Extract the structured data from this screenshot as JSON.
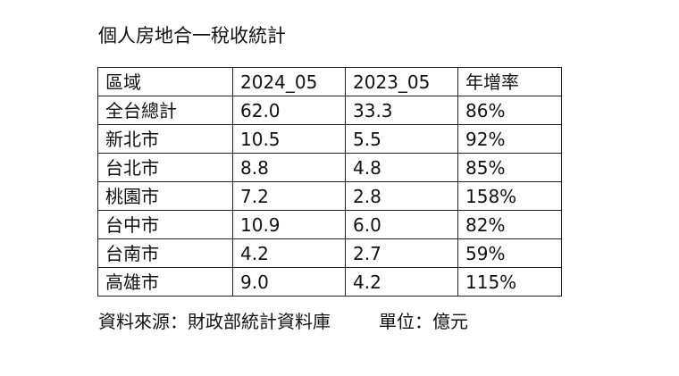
{
  "title": "個人房地合一稅收統計",
  "table": {
    "headers": [
      "區域",
      "2024_05",
      "2023_05",
      "年增率"
    ],
    "rows": [
      [
        "全台總計",
        "62.0",
        "33.3",
        "86%"
      ],
      [
        "新北市",
        "10.5",
        "5.5",
        "92%"
      ],
      [
        "台北市",
        "8.8",
        "4.8",
        "85%"
      ],
      [
        "桃園市",
        "7.2",
        "2.8",
        "158%"
      ],
      [
        "台中市",
        "10.9",
        "6.0",
        "82%"
      ],
      [
        "台南市",
        "4.2",
        "2.7",
        "59%"
      ],
      [
        "高雄市",
        "9.0",
        "4.2",
        "115%"
      ]
    ]
  },
  "footer": {
    "source": "資料來源：財政部統計資料庫",
    "unit": "單位：億元"
  }
}
